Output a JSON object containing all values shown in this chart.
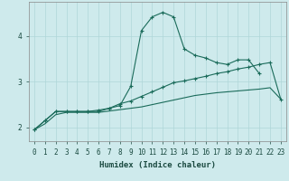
{
  "title": "",
  "xlabel": "Humidex (Indice chaleur)",
  "background_color": "#ceeaec",
  "grid_color": "#afd6d8",
  "line_color": "#1a6b5a",
  "x_values": [
    0,
    1,
    2,
    3,
    4,
    5,
    6,
    7,
    8,
    9,
    10,
    11,
    12,
    13,
    14,
    15,
    16,
    17,
    18,
    19,
    20,
    21,
    22,
    23
  ],
  "line1_x": [
    0,
    1,
    2,
    3,
    4,
    5,
    6,
    7,
    8,
    9,
    10,
    11,
    12,
    13,
    14,
    15,
    16,
    17,
    18,
    19,
    20,
    21
  ],
  "line1_y": [
    1.95,
    2.15,
    2.35,
    2.35,
    2.35,
    2.35,
    2.35,
    2.42,
    2.48,
    2.9,
    4.12,
    4.42,
    4.52,
    4.42,
    3.72,
    3.58,
    3.52,
    3.42,
    3.38,
    3.48,
    3.48,
    3.18
  ],
  "line2_x": [
    0,
    1,
    2,
    3,
    4,
    5,
    6,
    7,
    8,
    9,
    10,
    11,
    12,
    13,
    14,
    15,
    16,
    17,
    18,
    19,
    20,
    21,
    22,
    23
  ],
  "line2_y": [
    1.95,
    2.15,
    2.35,
    2.35,
    2.35,
    2.35,
    2.38,
    2.42,
    2.52,
    2.58,
    2.68,
    2.78,
    2.88,
    2.98,
    3.02,
    3.07,
    3.12,
    3.18,
    3.22,
    3.28,
    3.32,
    3.38,
    3.42,
    2.62
  ],
  "line3_x": [
    0,
    1,
    2,
    3,
    4,
    5,
    6,
    7,
    8,
    9,
    10,
    11,
    12,
    13,
    14,
    15,
    16,
    17,
    18,
    19,
    20,
    21,
    22,
    23
  ],
  "line3_y": [
    1.95,
    2.08,
    2.28,
    2.33,
    2.33,
    2.33,
    2.33,
    2.36,
    2.39,
    2.42,
    2.45,
    2.5,
    2.55,
    2.6,
    2.65,
    2.7,
    2.73,
    2.76,
    2.78,
    2.8,
    2.82,
    2.84,
    2.87,
    2.62
  ],
  "ylim": [
    1.7,
    4.75
  ],
  "yticks": [
    2,
    3,
    4
  ],
  "tick_fontsize": 5.5,
  "label_fontsize": 6.5
}
